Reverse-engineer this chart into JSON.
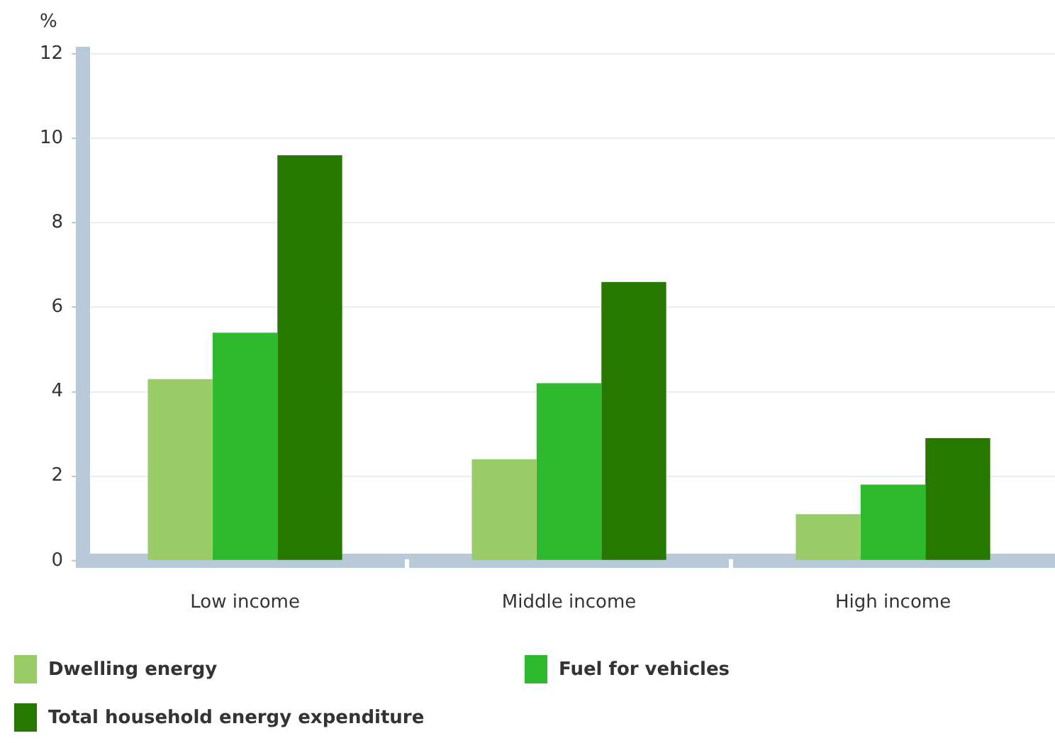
{
  "chart_data": {
    "type": "bar",
    "ylabel": "%",
    "categories": [
      "Low income",
      "Middle income",
      "High income"
    ],
    "series": [
      {
        "name": "Dwelling energy",
        "color": "#99cc66",
        "values": [
          4.3,
          2.4,
          1.1
        ]
      },
      {
        "name": "Fuel for vehicles",
        "color": "#2eba2e",
        "values": [
          5.4,
          4.2,
          1.8
        ]
      },
      {
        "name": "Total household energy expenditure",
        "color": "#267800",
        "values": [
          9.6,
          6.6,
          2.9
        ]
      }
    ],
    "ylim": [
      0,
      12
    ],
    "yticks": [
      0,
      2,
      4,
      6,
      8,
      10,
      12
    ],
    "grid": "y",
    "legend": "bottom"
  }
}
